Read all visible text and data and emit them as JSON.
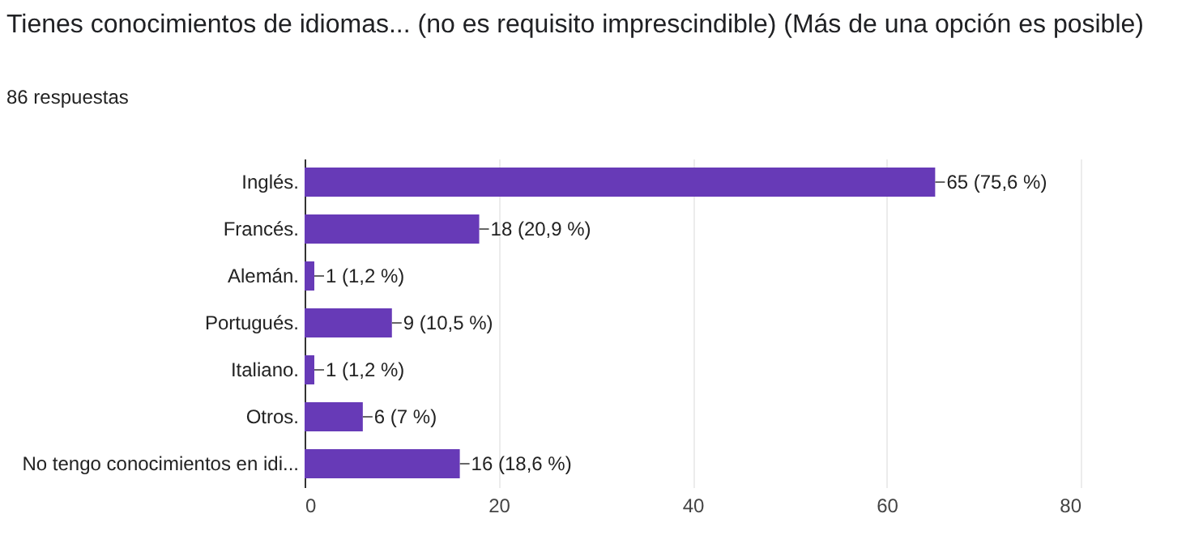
{
  "chart_data": {
    "type": "bar",
    "orientation": "horizontal",
    "title": "Tienes conocimientos de idiomas... (no es requisito imprescindible) (Más de una opción es posible)",
    "subtitle": "86 respuestas",
    "categories": [
      "Inglés.",
      "Francés.",
      "Alemán.",
      "Portugués.",
      "Italiano.",
      "Otros.",
      "No tengo conocimientos en idi..."
    ],
    "values": [
      65,
      18,
      1,
      9,
      1,
      6,
      16
    ],
    "value_labels": [
      "65 (75,6 %)",
      "18 (20,9 %)",
      "1 (1,2 %)",
      "9 (10,5 %)",
      "1 (1,2 %)",
      "6 (7 %)",
      "16 (18,6 %)"
    ],
    "color": "#673ab7",
    "xlim": [
      0,
      80
    ],
    "xticks": [
      0,
      20,
      40,
      60,
      80
    ],
    "grid": "x"
  }
}
